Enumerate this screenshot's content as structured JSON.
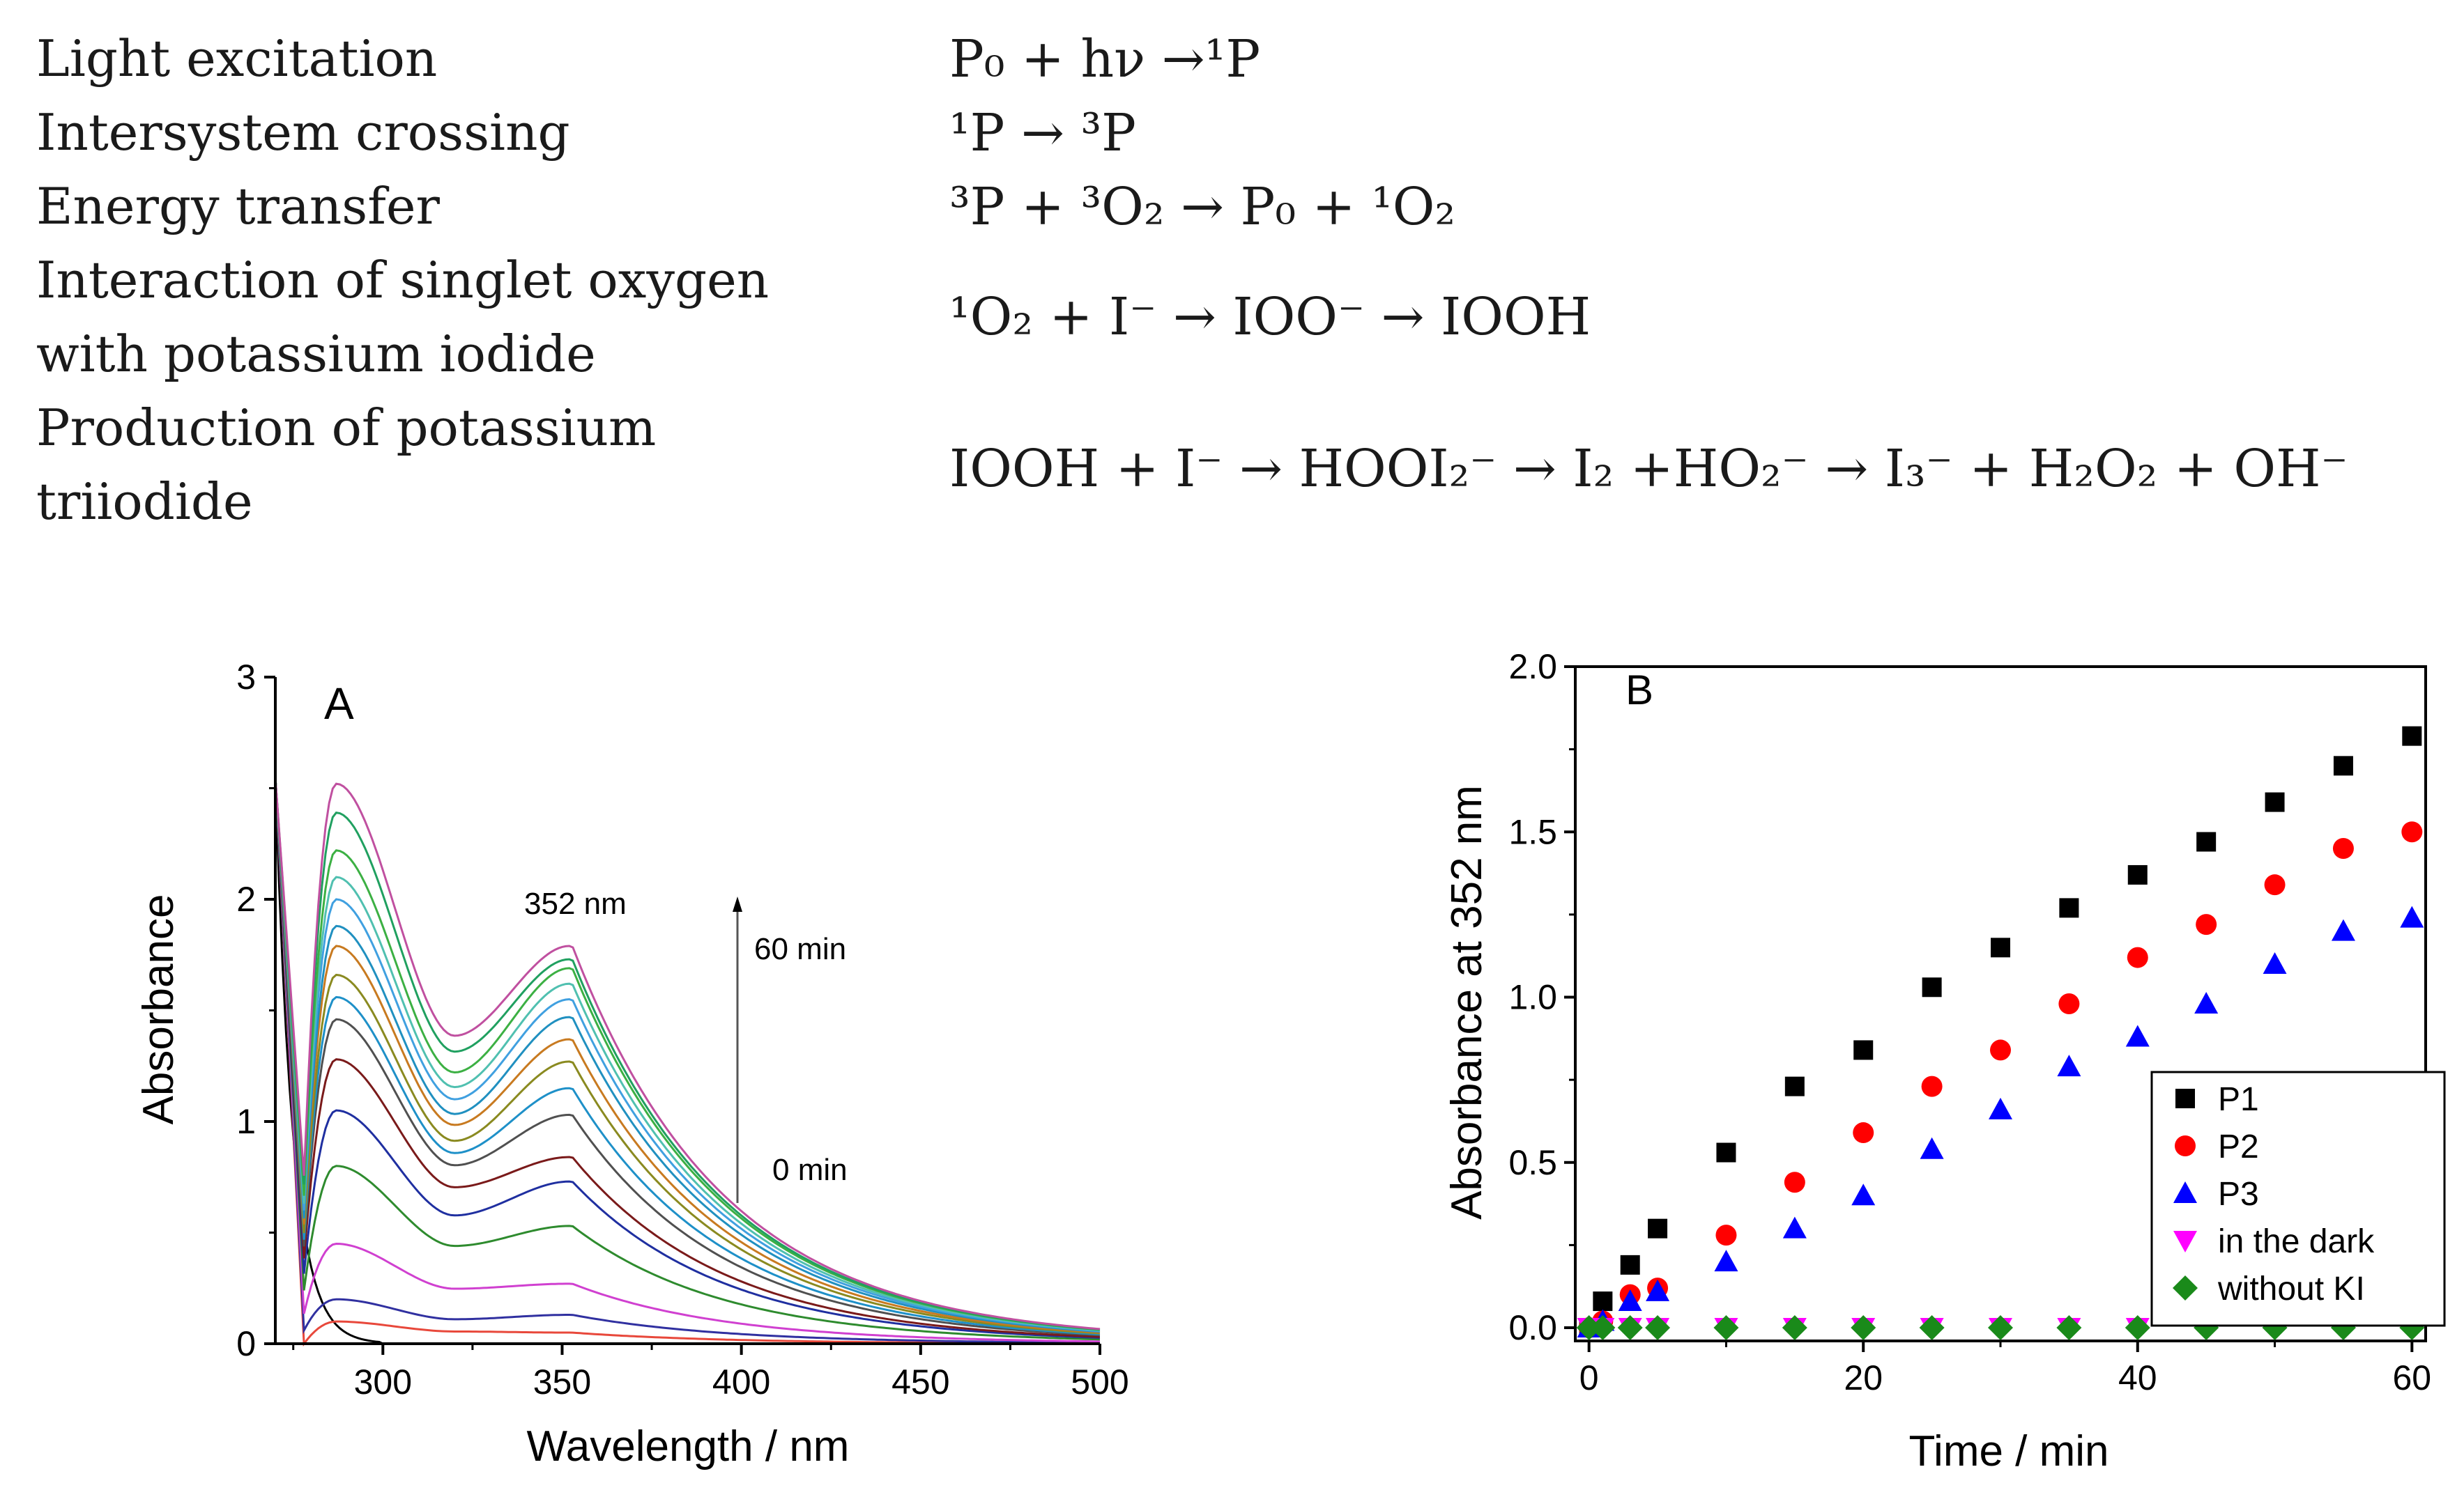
{
  "reactions": [
    {
      "label_lines": [
        "Light excitation"
      ],
      "equation": "P₀ + hν →¹P"
    },
    {
      "label_lines": [
        "Intersystem crossing"
      ],
      "equation": "¹P → ³P"
    },
    {
      "label_lines": [
        "Energy transfer"
      ],
      "equation": "³P + ³O₂ → P₀ + ¹O₂"
    },
    {
      "label_lines": [
        "Interaction of singlet oxygen",
        "with potassium iodide"
      ],
      "equation": "¹O₂ + I⁻ → IOO⁻ → IOOH"
    },
    {
      "label_lines": [
        "Production of potassium",
        "triiodide"
      ],
      "equation": "IOOH + I⁻ → HOOI₂⁻ → I₂ +HO₂⁻ → I₃⁻ + H₂O₂ + OH⁻"
    }
  ],
  "chart_data": [
    {
      "type": "line",
      "panel_label": "A",
      "xlabel": "Wavelength / nm",
      "ylabel": "Absorbance",
      "xlim": [
        270,
        500
      ],
      "ylim": [
        0,
        3
      ],
      "xticks": [
        300,
        350,
        400,
        450,
        500
      ],
      "yticks": [
        0,
        1,
        2,
        3
      ],
      "annotations": {
        "peak": "352 nm",
        "arrow_top": "60 min",
        "arrow_bottom": "0 min"
      },
      "series_note": "Absorbance spectra recorded from 0 min to 60 min; values at 287 nm and 352 nm",
      "series": [
        {
          "color": "#000000",
          "a287": 0.0,
          "a352": 0.0
        },
        {
          "color": "#e8483b",
          "a287": 0.1,
          "a352": 0.05
        },
        {
          "color": "#3030a0",
          "a287": 0.2,
          "a352": 0.13
        },
        {
          "color": "#d040d0",
          "a287": 0.45,
          "a352": 0.27
        },
        {
          "color": "#2e8b2e",
          "a287": 0.8,
          "a352": 0.53
        },
        {
          "color": "#1f2fa0",
          "a287": 1.05,
          "a352": 0.73
        },
        {
          "color": "#7a1a1a",
          "a287": 1.28,
          "a352": 0.84
        },
        {
          "color": "#505050",
          "a287": 1.46,
          "a352": 1.03
        },
        {
          "color": "#1e90c8",
          "a287": 1.56,
          "a352": 1.15
        },
        {
          "color": "#8a8a20",
          "a287": 1.66,
          "a352": 1.27
        },
        {
          "color": "#c87a20",
          "a287": 1.79,
          "a352": 1.37
        },
        {
          "color": "#2090c0",
          "a287": 1.88,
          "a352": 1.47
        },
        {
          "color": "#40a0e0",
          "a287": 2.0,
          "a352": 1.55
        },
        {
          "color": "#50c0b0",
          "a287": 2.1,
          "a352": 1.62
        },
        {
          "color": "#3cb043",
          "a287": 2.22,
          "a352": 1.69
        },
        {
          "color": "#20a060",
          "a287": 2.39,
          "a352": 1.73
        },
        {
          "color": "#c050a0",
          "a287": 2.52,
          "a352": 1.79
        }
      ]
    },
    {
      "type": "scatter",
      "panel_label": "B",
      "xlabel": "Time / min",
      "ylabel": "Absorbance at 352 nm",
      "xlim": [
        -1,
        61
      ],
      "ylim": [
        -0.04,
        2.0
      ],
      "xticks": [
        0,
        20,
        40,
        60
      ],
      "yticks": [
        0.0,
        0.5,
        1.0,
        1.5,
        2.0
      ],
      "ytick_labels": [
        "0.0",
        "0.5",
        "1.0",
        "1.5",
        "2.0"
      ],
      "legend_position": "bottom-right",
      "series": [
        {
          "name": "P1",
          "marker": "square",
          "color": "#000000",
          "x": [
            0,
            1,
            3,
            5,
            10,
            15,
            20,
            25,
            30,
            35,
            40,
            45,
            50,
            55,
            60
          ],
          "y": [
            0.0,
            0.08,
            0.19,
            0.3,
            0.53,
            0.73,
            0.84,
            1.03,
            1.15,
            1.27,
            1.37,
            1.47,
            1.59,
            1.7,
            1.79
          ]
        },
        {
          "name": "P2",
          "marker": "circle",
          "color": "#ff0000",
          "x": [
            0,
            1,
            3,
            5,
            10,
            15,
            20,
            25,
            30,
            35,
            40,
            45,
            50,
            55,
            60
          ],
          "y": [
            0.0,
            0.02,
            0.1,
            0.12,
            0.28,
            0.44,
            0.59,
            0.73,
            0.84,
            0.98,
            1.12,
            1.22,
            1.34,
            1.45,
            1.5
          ]
        },
        {
          "name": "P3",
          "marker": "triangle-up",
          "color": "#0000ff",
          "x": [
            0,
            1,
            3,
            5,
            10,
            15,
            20,
            25,
            30,
            35,
            40,
            45,
            50,
            55,
            60
          ],
          "y": [
            0.0,
            0.02,
            0.08,
            0.11,
            0.2,
            0.3,
            0.4,
            0.54,
            0.66,
            0.79,
            0.88,
            0.98,
            1.1,
            1.2,
            1.24
          ]
        },
        {
          "name": "in the dark",
          "marker": "triangle-down",
          "color": "#ff00ff",
          "x": [
            0,
            1,
            3,
            5,
            10,
            15,
            20,
            25,
            30,
            35,
            40,
            45,
            50,
            55,
            60
          ],
          "y": [
            0,
            0,
            0,
            0,
            0,
            0,
            0,
            0,
            0,
            0,
            0,
            0,
            0,
            0,
            0
          ]
        },
        {
          "name": "without KI",
          "marker": "diamond",
          "color": "#1a8a1a",
          "x": [
            0,
            1,
            3,
            5,
            10,
            15,
            20,
            25,
            30,
            35,
            40,
            45,
            50,
            55,
            60
          ],
          "y": [
            0,
            0,
            0,
            0,
            0,
            0,
            0,
            0,
            0,
            0,
            0,
            0,
            0,
            0,
            0
          ]
        }
      ]
    }
  ]
}
